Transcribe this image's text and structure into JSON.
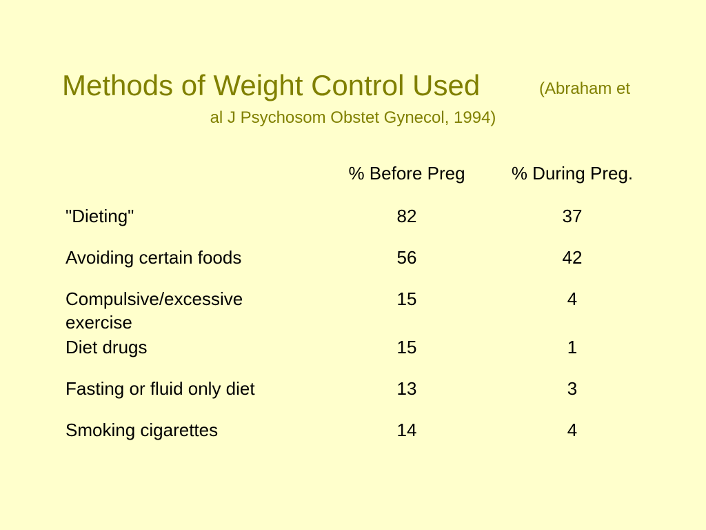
{
  "title": {
    "main": "Methods of Weight Control Used",
    "citation_line1": "(Abraham et",
    "citation_line2": "al J Psychosom Obstet Gynecol, 1994)"
  },
  "table": {
    "headers": [
      "",
      "% Before Preg",
      "% During Preg."
    ],
    "rows": [
      {
        "label": "\"Dieting\"",
        "before": "82",
        "during": "37"
      },
      {
        "label": "Avoiding certain foods",
        "before": "56",
        "during": "42"
      },
      {
        "label": "Compulsive/excessive exercise",
        "before": "15",
        "during": "4"
      },
      {
        "label": "Diet drugs",
        "before": "15",
        "during": "1"
      },
      {
        "label": "Fasting or fluid only diet",
        "before": "13",
        "during": "3"
      },
      {
        "label": "Smoking cigarettes",
        "before": "14",
        "during": "4"
      }
    ]
  },
  "colors": {
    "background": "#ffffcc",
    "title": "#808000",
    "text": "#000000"
  }
}
